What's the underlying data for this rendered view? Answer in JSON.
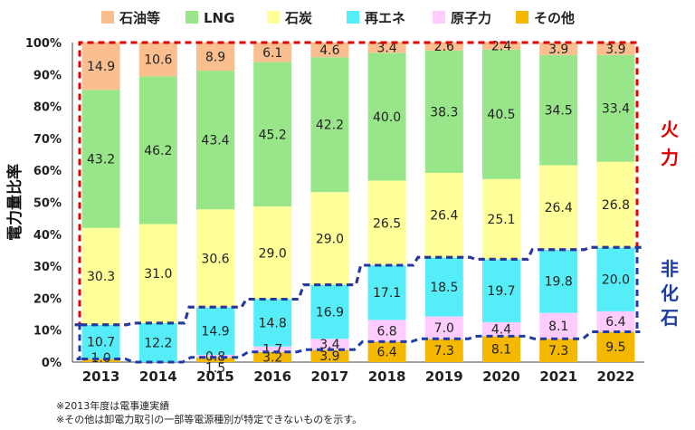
{
  "chart_data": {
    "type": "bar",
    "stacked": true,
    "ylabel": "電力量比率",
    "ylim": [
      0,
      100
    ],
    "yticks": [
      "0%",
      "10%",
      "20%",
      "30%",
      "40%",
      "50%",
      "60%",
      "70%",
      "80%",
      "90%",
      "100%"
    ],
    "legend_position": "top",
    "categories": [
      "2013",
      "2014",
      "2015",
      "2016",
      "2017",
      "2018",
      "2019",
      "2020",
      "2021",
      "2022"
    ],
    "series": [
      {
        "name": "その他",
        "color": "#f5b800",
        "values": [
          1.0,
          0.0,
          1.5,
          3.2,
          3.9,
          6.4,
          7.3,
          8.1,
          7.3,
          9.5
        ],
        "labels": [
          "1.0",
          "",
          "1.5",
          "3.2",
          "3.9",
          "6.4",
          "7.3",
          "8.1",
          "7.3",
          "9.5"
        ]
      },
      {
        "name": "原子力",
        "color": "#ffccff",
        "values": [
          0.0,
          0.0,
          0.8,
          1.7,
          3.4,
          6.8,
          7.0,
          4.4,
          8.1,
          6.4
        ],
        "labels": [
          "",
          "",
          "0.8",
          "1.7",
          "3.4",
          "6.8",
          "7.0",
          "4.4",
          "8.1",
          "6.4"
        ]
      },
      {
        "name": "再エネ",
        "color": "#55eef8",
        "values": [
          10.7,
          12.2,
          14.9,
          14.8,
          16.9,
          17.1,
          18.5,
          19.7,
          19.8,
          20.0
        ],
        "labels": [
          "10.7",
          "12.2",
          "14.9",
          "14.8",
          "16.9",
          "17.1",
          "18.5",
          "19.7",
          "19.8",
          "20.0"
        ]
      },
      {
        "name": "石炭",
        "color": "#ffff99",
        "values": [
          30.3,
          31.0,
          30.6,
          29.0,
          29.0,
          26.5,
          26.4,
          25.1,
          26.4,
          26.8
        ],
        "labels": [
          "30.3",
          "31.0",
          "30.6",
          "29.0",
          "29.0",
          "26.5",
          "26.4",
          "25.1",
          "26.4",
          "26.8"
        ]
      },
      {
        "name": "LNG",
        "color": "#99e68a",
        "values": [
          43.2,
          46.2,
          43.4,
          45.2,
          42.2,
          40.0,
          38.3,
          40.5,
          34.5,
          33.4
        ],
        "labels": [
          "43.2",
          "46.2",
          "43.4",
          "45.2",
          "42.2",
          "40.0",
          "38.3",
          "40.5",
          "34.5",
          "33.4"
        ]
      },
      {
        "name": "石油等",
        "color": "#fbbf8f",
        "values": [
          14.9,
          10.6,
          8.9,
          6.1,
          4.6,
          3.4,
          2.6,
          2.4,
          3.9,
          3.9
        ],
        "labels": [
          "14.9",
          "10.6",
          "8.9",
          "6.1",
          "4.6",
          "3.4",
          "2.6",
          "2.4",
          "3.9",
          "3.9"
        ]
      }
    ],
    "legend_order": [
      "石油等",
      "LNG",
      "石炭",
      "再エネ",
      "原子力",
      "その他"
    ],
    "annotations": {
      "fossil": {
        "text": [
          "火",
          "力"
        ],
        "color": "#e00000"
      },
      "nonfossil": {
        "text": [
          "非",
          "化",
          "石"
        ],
        "color": "#1f3ca6"
      }
    }
  },
  "footnotes": [
    "※2013年度は電事連実績",
    "※その他は卸電力取引の一部等電源種別が特定できないものを示す。"
  ]
}
